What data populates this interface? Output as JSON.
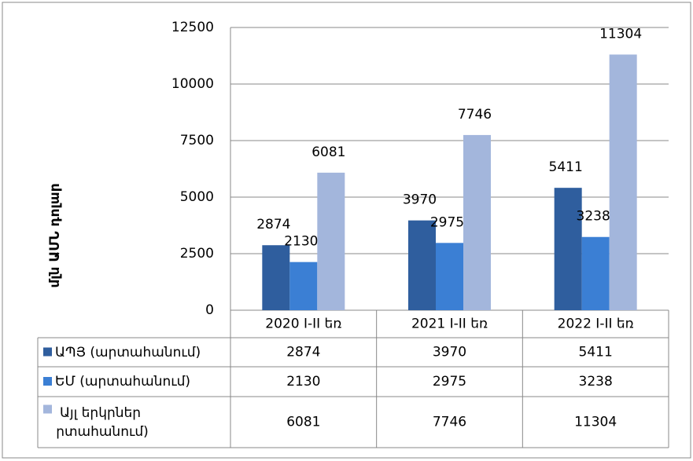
{
  "chart_data": {
    "type": "bar",
    "ylabel": "մլն ԱՄՆ դոլար",
    "categories": [
      "2020 I-II եռ",
      "2021 I-II եռ",
      "2022 I-II եռ"
    ],
    "series": [
      {
        "name": "ԱՊՅ (արտահանում)",
        "color": "#2f5e9e",
        "values": [
          2874,
          3970,
          5411
        ]
      },
      {
        "name": "ԵՄ (արտահանում)",
        "color": "#3b7fd4",
        "values": [
          2130,
          2975,
          3238
        ]
      },
      {
        "name": "Այլ երկրներ (արտահանում)",
        "color": "#a3b6dc",
        "values": [
          6081,
          7746,
          11304
        ]
      }
    ],
    "ylim": [
      0,
      12500
    ],
    "yticks": [
      0,
      2500,
      5000,
      7500,
      10000,
      12500
    ],
    "grid": true
  }
}
